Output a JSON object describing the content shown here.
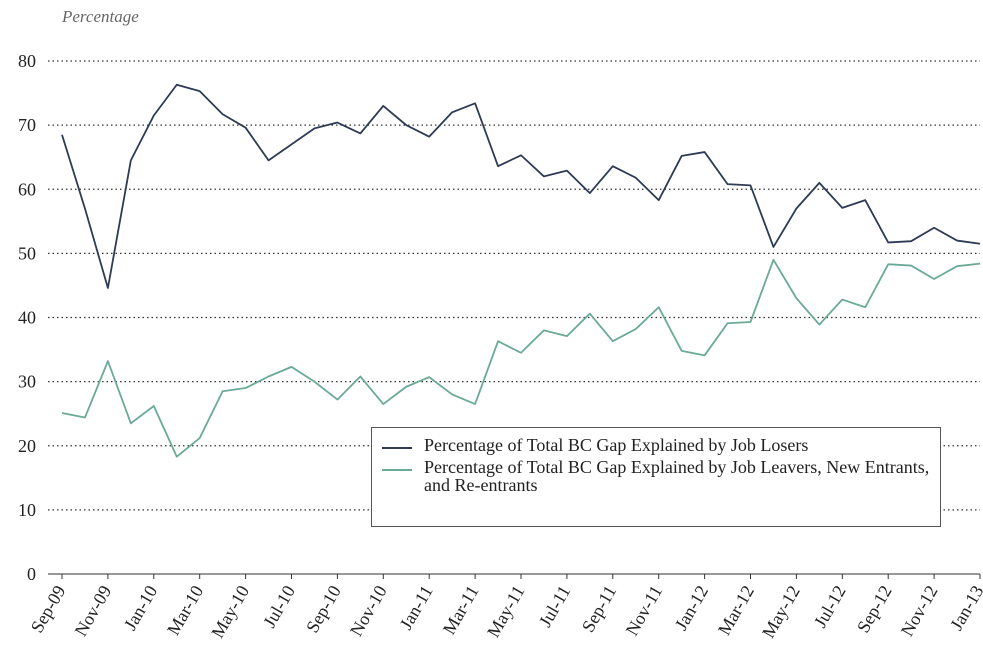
{
  "chart_data": {
    "type": "line",
    "y_label": "Percentage",
    "categories": [
      "Sep-09",
      null,
      "Nov-09",
      null,
      "Jan-10",
      null,
      "Mar-10",
      null,
      "May-10",
      null,
      "Jul-10",
      null,
      "Sep-10",
      null,
      "Nov-10",
      null,
      "Jan-11",
      null,
      "Mar-11",
      null,
      "May-11",
      null,
      "Jul-11",
      null,
      "Sep-11",
      null,
      "Nov-11",
      null,
      "Jan-12",
      null,
      "Mar-12",
      null,
      "May-12",
      null,
      "Jul-12",
      null,
      "Sep-12",
      null,
      "Nov-12",
      null,
      "Jan-13"
    ],
    "series": [
      {
        "name": "Percentage of Total BC Gap Explained by Job Losers",
        "color": "#2e3b55",
        "values": [
          68.5,
          57,
          44.6,
          64.5,
          71.5,
          76.3,
          75.3,
          71.7,
          69.6,
          64.5,
          67,
          69.5,
          70.4,
          68.7,
          73,
          70,
          68.2,
          72,
          73.4,
          63.6,
          65.3,
          62,
          62.9,
          59.4,
          63.6,
          61.8,
          58.3,
          65.2,
          65.8,
          60.8,
          60.6,
          51,
          57,
          61,
          57.1,
          58.3,
          51.7,
          51.9,
          54,
          52,
          51.5
        ]
      },
      {
        "name": "Percentage of Total BC Gap Explained by Job Leavers, New Entrants, and Re-entrants",
        "color": "#6aaa96",
        "values": [
          25.1,
          24.4,
          33.2,
          23.5,
          26.2,
          18.3,
          21.2,
          28.5,
          29,
          30.8,
          32.3,
          30,
          27.2,
          30.8,
          26.5,
          29.2,
          30.7,
          28,
          26.5,
          36.3,
          34.5,
          38,
          37.1,
          40.6,
          36.3,
          38.2,
          41.6,
          34.8,
          34.1,
          39.1,
          39.3,
          49,
          43,
          38.9,
          42.8,
          41.6,
          48.3,
          48.1,
          46,
          48,
          48.4
        ]
      }
    ],
    "ylim": [
      0,
      80
    ],
    "yticks": [
      0,
      10,
      20,
      30,
      40,
      50,
      60,
      70,
      80
    ],
    "grid": true
  }
}
